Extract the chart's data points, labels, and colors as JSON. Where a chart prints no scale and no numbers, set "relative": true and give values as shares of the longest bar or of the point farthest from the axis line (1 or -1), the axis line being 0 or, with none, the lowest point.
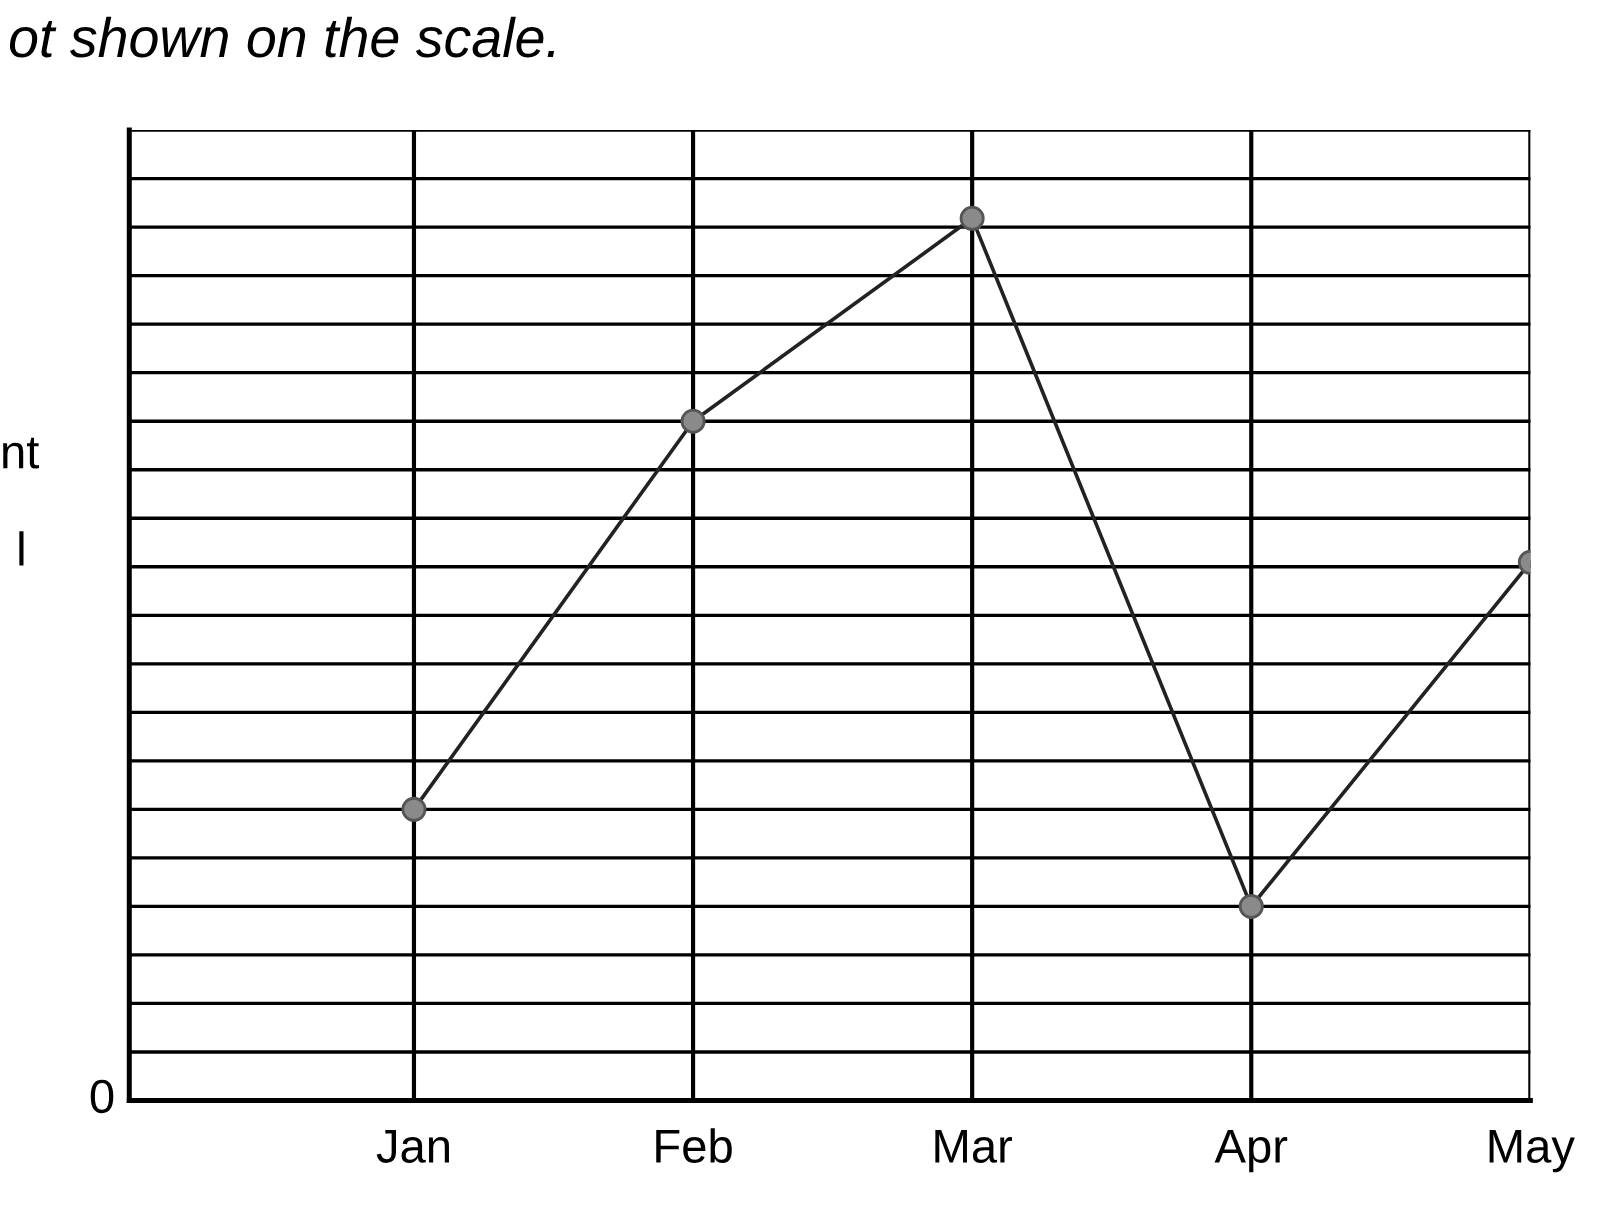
{
  "chart_data": {
    "type": "line",
    "relative": true,
    "title": "ot shown on the scale.",
    "categories": [
      "Jan",
      "Feb",
      "Mar",
      "Apr",
      "May"
    ],
    "series": [
      {
        "color": "#222222",
        "values": [
          0.33,
          0.77,
          1,
          0.22,
          0.61
        ]
      }
    ],
    "marker": "circle",
    "line_style": "solid",
    "grid": true,
    "annotations": [
      "nt",
      "l",
      "0"
    ]
  }
}
